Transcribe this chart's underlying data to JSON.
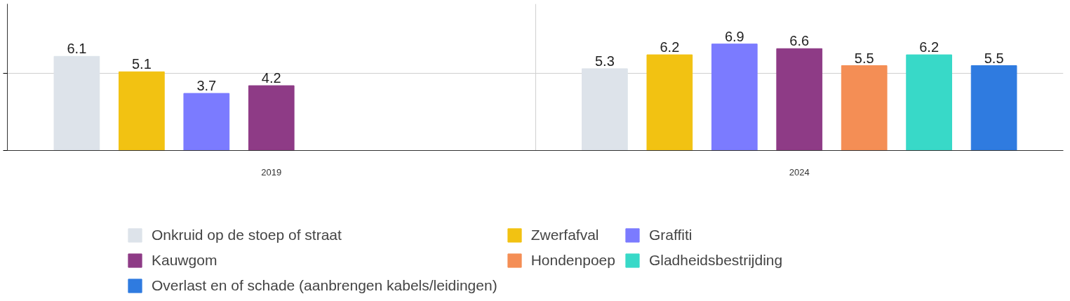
{
  "chart_data": {
    "type": "bar",
    "categories": [
      "2019",
      "2024"
    ],
    "series": [
      {
        "name": "Onkruid op de stoep of straat",
        "color": "#dde3ea",
        "values": [
          6.1,
          5.3
        ]
      },
      {
        "name": "Zwerfafval",
        "color": "#f2c212",
        "values": [
          5.1,
          6.2
        ]
      },
      {
        "name": "Graffiti",
        "color": "#7b7bff",
        "values": [
          3.7,
          6.9
        ]
      },
      {
        "name": "Kauwgom",
        "color": "#8e3b86",
        "values": [
          4.2,
          6.6
        ]
      },
      {
        "name": "Hondenpoep",
        "color": "#f48e55",
        "values": [
          null,
          5.5
        ]
      },
      {
        "name": "Gladheidsbestrijding",
        "color": "#38d9c8",
        "values": [
          null,
          6.2
        ]
      },
      {
        "name": "Overlast en of schade (aanbrengen kabels/leidingen)",
        "color": "#2f7be0",
        "values": [
          null,
          5.5
        ]
      }
    ],
    "ylim": [
      0,
      9.5
    ],
    "yticks": [
      {
        "value": 0,
        "label": null
      },
      {
        "value": 5,
        "label": null
      }
    ],
    "tick_labels": "x",
    "grid": true,
    "data_labels": true,
    "legend": "bottom"
  }
}
